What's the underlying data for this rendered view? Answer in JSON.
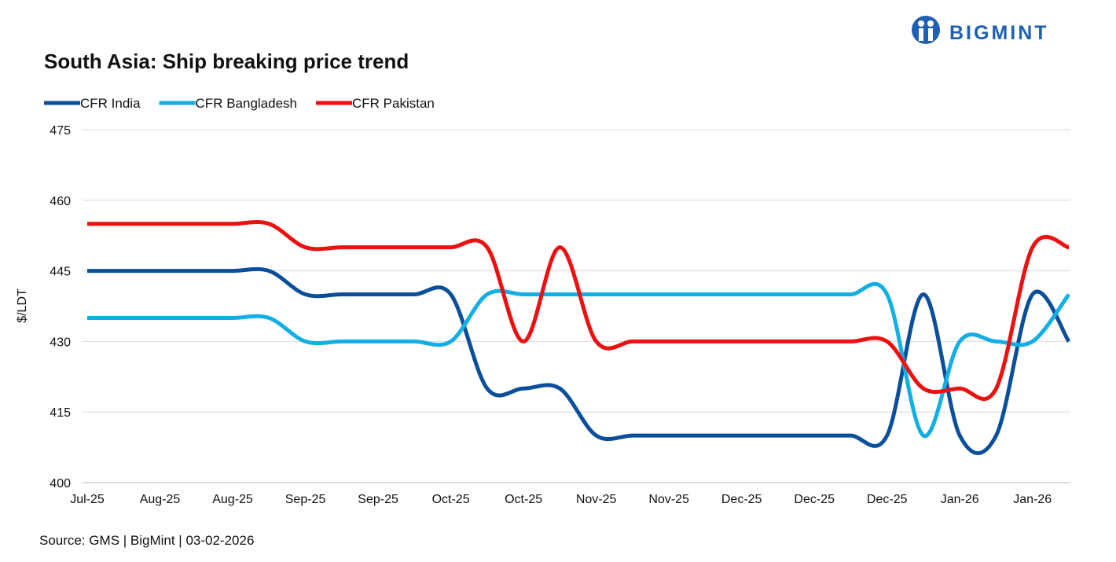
{
  "brand": "BIGMINT",
  "chart_data": {
    "type": "line",
    "title": "South Asia: Ship breaking  price trend",
    "ylabel": "$/LDT",
    "source": "Source: GMS | BigMint  | 03-02-2026",
    "categories": [
      "Jul-25",
      null,
      "Aug-25",
      null,
      "Aug-25",
      null,
      "Sep-25",
      null,
      "Sep-25",
      null,
      "Oct-25",
      null,
      "Oct-25",
      null,
      "Nov-25",
      null,
      "Nov-25",
      null,
      "Dec-25",
      null,
      "Dec-25",
      null,
      "Dec-25",
      null,
      "Jan-26",
      null,
      "Jan-26",
      null
    ],
    "series": [
      {
        "name": "CFR India",
        "color": "#0b4f9c",
        "values": [
          445,
          445,
          445,
          445,
          445,
          445,
          440,
          440,
          440,
          440,
          440,
          420,
          420,
          420,
          410,
          410,
          410,
          410,
          410,
          410,
          410,
          410,
          410,
          440,
          410,
          410,
          440,
          430
        ]
      },
      {
        "name": "CFR Bangladesh",
        "color": "#12aee6",
        "values": [
          435,
          435,
          435,
          435,
          435,
          435,
          430,
          430,
          430,
          430,
          430,
          440,
          440,
          440,
          440,
          440,
          440,
          440,
          440,
          440,
          440,
          440,
          440,
          410,
          430,
          430,
          430,
          440
        ]
      },
      {
        "name": "CFR Pakistan",
        "color": "#ee0f0f",
        "values": [
          455,
          455,
          455,
          455,
          455,
          455,
          450,
          450,
          450,
          450,
          450,
          450,
          430,
          450,
          430,
          430,
          430,
          430,
          430,
          430,
          430,
          430,
          430,
          420,
          420,
          420,
          450,
          450
        ]
      }
    ],
    "ylim": [
      400,
      475
    ],
    "yticks": [
      400,
      415,
      430,
      445,
      460,
      475
    ],
    "grid": true
  }
}
